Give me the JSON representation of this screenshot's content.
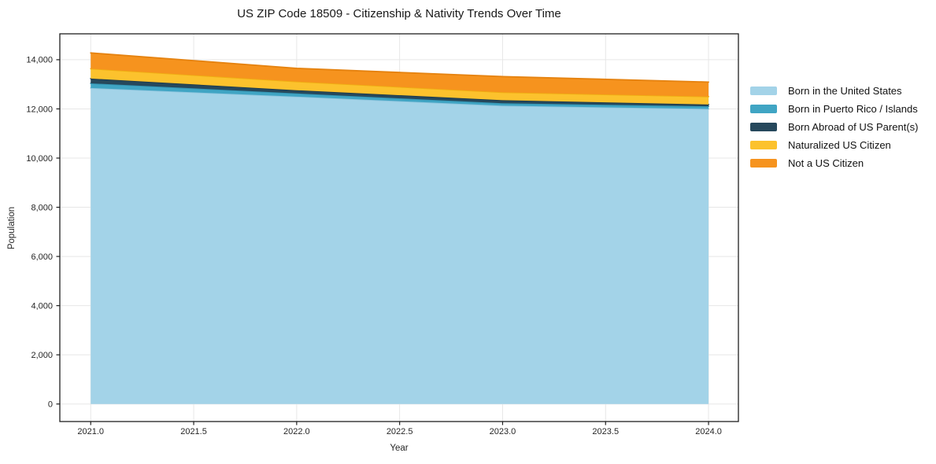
{
  "title": "US ZIP Code 18509 - Citizenship & Nativity Trends Over Time",
  "chart_data": {
    "type": "area",
    "stacked": true,
    "title": "US ZIP Code 18509 - Citizenship & Nativity Trends Over Time",
    "xlabel": "Year",
    "ylabel": "Population",
    "x": [
      2021,
      2022,
      2023,
      2024
    ],
    "series": [
      {
        "name": "Born in the United States",
        "color": "#A3D3E8",
        "edge": "#8CC4DD",
        "values": [
          12850,
          12500,
          12130,
          12000
        ]
      },
      {
        "name": "Born in Puerto Rico / Islands",
        "color": "#40A5C4",
        "edge": "#3293B1",
        "values": [
          190,
          130,
          100,
          105
        ]
      },
      {
        "name": "Born Abroad of US Parent(s)",
        "color": "#26485C",
        "edge": "#1C3A4B",
        "values": [
          195,
          130,
          125,
          75
        ]
      },
      {
        "name": "Naturalized US Citizen",
        "color": "#FCC22D",
        "edge": "#EFAE12",
        "values": [
          400,
          350,
          320,
          320
        ]
      },
      {
        "name": "Not a US Citizen",
        "color": "#F6931E",
        "edge": "#E5820F",
        "values": [
          640,
          540,
          640,
          590
        ]
      }
    ],
    "stacked_totals": [
      14275,
      13650,
      13315,
      13090
    ],
    "x_tick_labels": [
      "2021.0",
      "2021.5",
      "2022.0",
      "2022.5",
      "2023.0",
      "2023.5",
      "2024.0"
    ],
    "x_tick_values": [
      2021,
      2021.5,
      2022,
      2022.5,
      2023,
      2023.5,
      2024
    ],
    "y_tick_labels": [
      "0",
      "2,000",
      "4,000",
      "6,000",
      "8,000",
      "10,000",
      "12,000",
      "14,000"
    ],
    "y_tick_values": [
      0,
      2000,
      4000,
      6000,
      8000,
      10000,
      12000,
      14000
    ],
    "xlim": [
      2020.85,
      2024.145
    ],
    "ylim": [
      -713,
      15053
    ],
    "grid": true,
    "grid_color": "#e7e7e7",
    "spine_color": "#1f1f1f",
    "tick_label_color": "#262626",
    "legend_position": "right-outside"
  }
}
